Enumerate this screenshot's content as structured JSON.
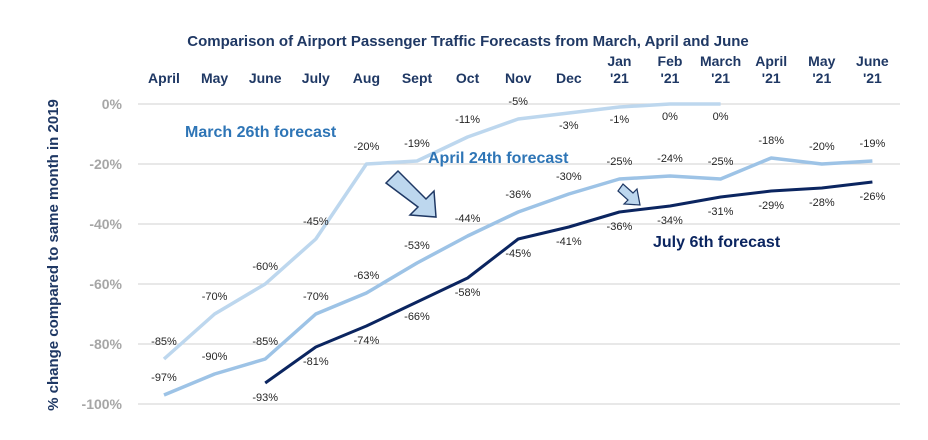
{
  "chart_data": {
    "type": "line",
    "title": "Comparison of Airport Passenger Traffic Forecasts from March, April and June",
    "xlabel": "",
    "ylabel": "% change compared to same month in 2019",
    "categories": [
      "April",
      "May",
      "June",
      "July",
      "Aug",
      "Sept",
      "Oct",
      "Nov",
      "Dec",
      "Jan '21",
      "Feb '21",
      "March '21",
      "April '21",
      "May '21",
      "June '21"
    ],
    "ylim": [
      -100,
      0
    ],
    "yticks": [
      0,
      -20,
      -40,
      -60,
      -80,
      -100
    ],
    "ytick_labels": [
      "0%",
      "-20%",
      "-40%",
      "-60%",
      "-80%",
      "-100%"
    ],
    "grid": true,
    "legend": "none (inline annotations)",
    "series": [
      {
        "name": "March 26th forecast",
        "color": "#bdd7ee",
        "values": [
          -85,
          -70,
          -60,
          -45,
          -20,
          -19,
          -11,
          -5,
          -3,
          -1,
          0,
          0,
          null,
          null,
          null
        ]
      },
      {
        "name": "April 24th forecast",
        "color": "#9dc3e6",
        "values": [
          -97,
          -90,
          -85,
          -70,
          -63,
          -53,
          -44,
          -36,
          -30,
          -25,
          -24,
          -25,
          -18,
          -20,
          -19
        ]
      },
      {
        "name": "July 6th forecast",
        "color": "#0b2560",
        "values": [
          null,
          null,
          -93,
          -81,
          -74,
          -66,
          -58,
          -45,
          -41,
          -36,
          -34,
          -31,
          -29,
          -28,
          -26
        ]
      }
    ],
    "annotations": [
      {
        "text": "March 26th forecast",
        "color": "#2e75b6"
      },
      {
        "text": "April 24th forecast",
        "color": "#2e75b6"
      },
      {
        "text": "July 6th forecast",
        "color": "#0b2560"
      }
    ]
  }
}
